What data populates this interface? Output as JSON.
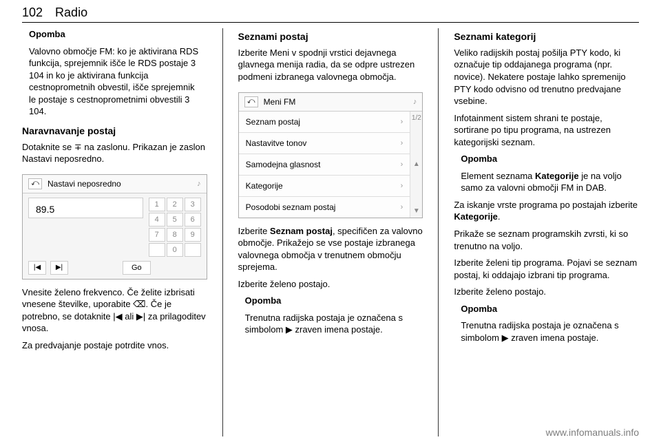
{
  "page_number": "102",
  "chapter": "Radio",
  "col1": {
    "opomba_head": "Opomba",
    "opomba_body": "Valovno območje FM: ko je aktivirana RDS funkcija, sprejemnik išče le RDS postaje 3 104 in ko je aktivirana funkcija cestnoprometnih obvestil, išče sprejemnik le postaje s cestnoprometnimi obvestili 3 104.",
    "h1": "Naravnavanje postaj",
    "p1": "Dotaknite se ∓ na zaslonu. Prikazan je zaslon Nastavi neposredno.",
    "screen1": {
      "title": "Nastavi neposredno",
      "freq": "89.5",
      "keys": [
        "1",
        "2",
        "3",
        "4",
        "5",
        "6",
        "7",
        "8",
        "9",
        "",
        "0",
        ""
      ],
      "prev": "|◀",
      "next": "▶|",
      "go": "Go"
    },
    "p2": "Vnesite želeno frekvenco. Če želite izbrisati vnesene številke, uporabite ⌫. Če je potrebno, se dotaknite |◀ ali ▶| za prilagoditev vnosa.",
    "p3": "Za predvajanje postaje potrdite vnos."
  },
  "col2": {
    "h1": "Seznami postaj",
    "p1": "Izberite Meni v spodnji vrstici dejavnega glavnega menija radia, da se odpre ustrezen podmeni izbranega valovnega območja.",
    "screen2": {
      "title": "Meni FM",
      "items": [
        "Seznam postaj",
        "Nastavitve tonov",
        "Samodejna glasnost",
        "Kategorije",
        "Posodobi seznam postaj"
      ],
      "page_ind": "1/2",
      "up": "▲",
      "down": "▼"
    },
    "p2a": "Izberite ",
    "p2b": "Seznam postaj",
    "p2c": ", specifičen za valovno območje. Prikažejo se vse postaje izbranega valovnega območja v trenutnem območju sprejema.",
    "p3": "Izberite želeno postajo.",
    "opomba_head": "Opomba",
    "opomba_body": "Trenutna radijska postaja je označena s simbolom ▶ zraven imena postaje."
  },
  "col3": {
    "h1": "Seznami kategorij",
    "p1": "Veliko radijskih postaj pošilja PTY kodo, ki označuje tip oddajanega programa (npr. novice). Nekatere postaje lahko spremenijo PTY kodo odvisno od trenutno predvajane vsebine.",
    "p2": "Infotainment sistem shrani te postaje, sortirane po tipu programa, na ustrezen kategorijski seznam.",
    "op1_head": "Opomba",
    "op1_a": "Element seznama ",
    "op1_b": "Kategorije",
    "op1_c": " je na voljo samo za valovni območji FM in DAB.",
    "p3a": "Za iskanje vrste programa po postajah izberite ",
    "p3b": "Kategorije",
    "p3c": ".",
    "p4": "Prikaže se seznam programskih zvrsti, ki so trenutno na voljo.",
    "p5": "Izberite želeni tip programa. Pojavi se seznam postaj, ki oddajajo izbrani tip programa.",
    "p6": "Izberite želeno postajo.",
    "op2_head": "Opomba",
    "op2_body": "Trenutna radijska postaja je označena s simbolom ▶ zraven imena postaje."
  },
  "watermark": "www.infomanuals.info"
}
